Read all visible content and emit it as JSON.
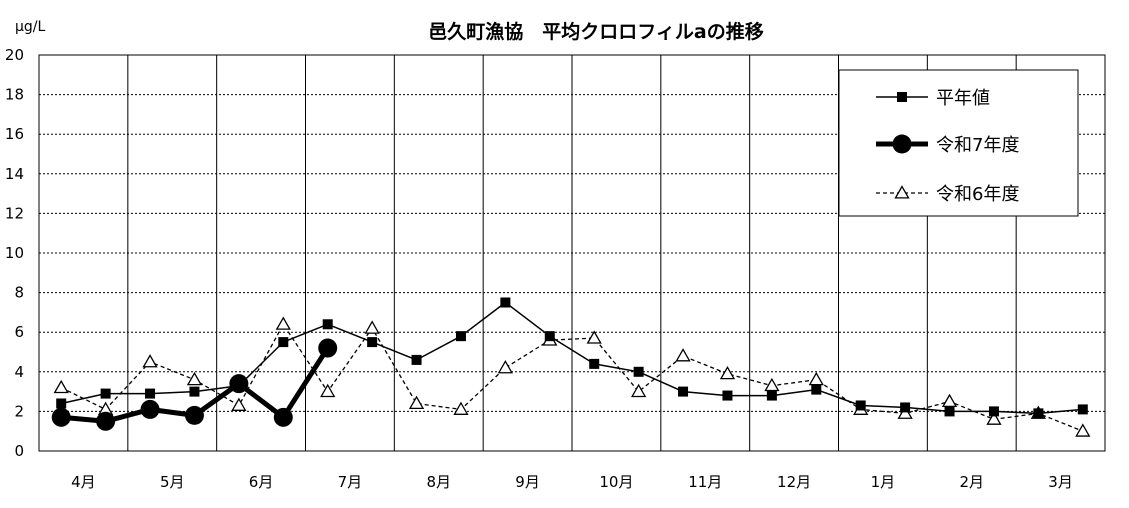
{
  "chart_data": {
    "type": "line",
    "title": "邑久町漁協　平均クロロフィルaの推移",
    "ylabel": "μg/L",
    "xlabel": "",
    "ylim": [
      0,
      20
    ],
    "yticks": [
      0,
      2,
      4,
      6,
      8,
      10,
      12,
      14,
      16,
      18,
      20
    ],
    "grid": true,
    "legend_position": "top-right",
    "categories": [
      "4月",
      "5月",
      "6月",
      "7月",
      "8月",
      "9月",
      "10月",
      "11月",
      "12月",
      "1月",
      "2月",
      "3月"
    ],
    "series": [
      {
        "name": "平年値",
        "style": "solid-thin",
        "marker": "square",
        "color": "#000000",
        "x": [
          0.25,
          0.75,
          1.25,
          1.75,
          2.25,
          2.75,
          3.25,
          3.75,
          4.25,
          4.75,
          5.25,
          5.75,
          6.25,
          6.75,
          7.25,
          7.75,
          8.25,
          8.75,
          9.25,
          9.75,
          10.25,
          10.75,
          11.25,
          11.75
        ],
        "values": [
          2.4,
          2.9,
          2.9,
          3.0,
          3.3,
          5.5,
          6.4,
          5.5,
          4.6,
          5.8,
          7.5,
          5.8,
          4.4,
          4.0,
          3.0,
          2.8,
          2.8,
          3.1,
          2.3,
          2.2,
          2.0,
          2.0,
          1.9,
          2.1
        ]
      },
      {
        "name": "令和7年度",
        "style": "solid-thick",
        "marker": "circle",
        "color": "#000000",
        "x": [
          0.25,
          0.75,
          1.25,
          1.75,
          2.25,
          2.75,
          3.25
        ],
        "values": [
          1.7,
          1.5,
          2.1,
          1.8,
          3.4,
          1.7,
          5.2
        ]
      },
      {
        "name": "令和6年度",
        "style": "dashed",
        "marker": "triangle-open",
        "color": "#000000",
        "x": [
          0.25,
          0.75,
          1.25,
          1.75,
          2.25,
          2.75,
          3.25,
          3.75,
          4.25,
          4.75,
          5.25,
          5.75,
          6.25,
          6.75,
          7.25,
          7.75,
          8.25,
          8.75,
          9.25,
          9.75,
          10.25,
          10.75,
          11.25,
          11.75
        ],
        "values": [
          3.2,
          2.1,
          4.5,
          3.6,
          2.3,
          6.4,
          3.0,
          6.2,
          2.4,
          2.1,
          4.2,
          5.6,
          5.7,
          3.0,
          4.8,
          3.9,
          3.3,
          3.6,
          2.1,
          1.9,
          2.5,
          1.6,
          1.9,
          1.0
        ]
      }
    ]
  }
}
